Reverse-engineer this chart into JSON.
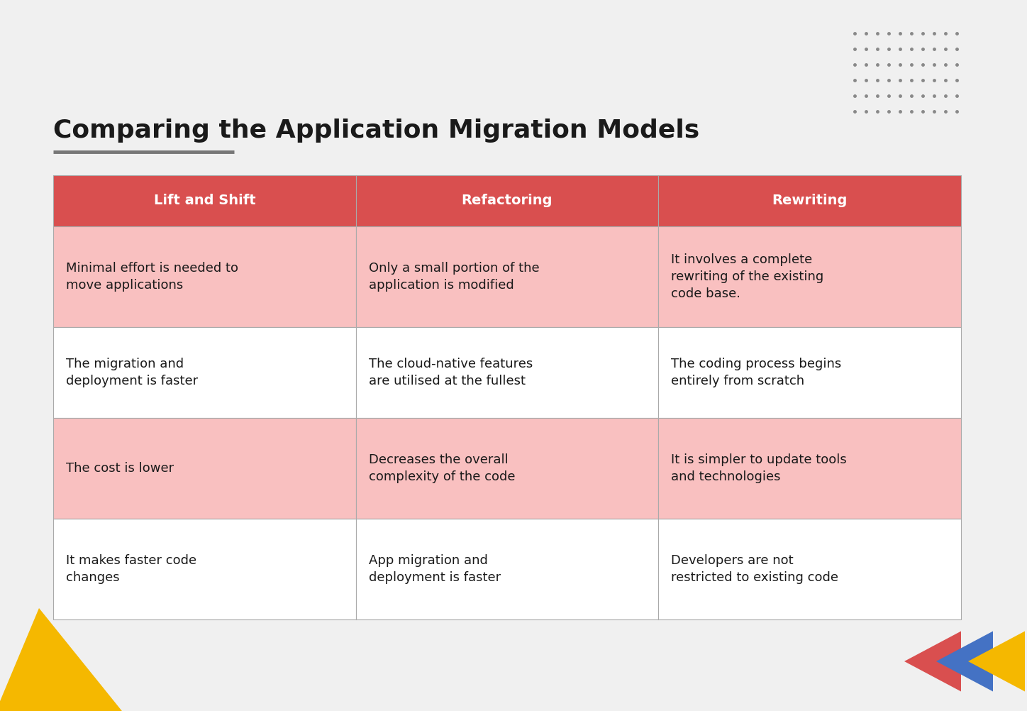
{
  "title": "Comparing the Application Migration Models",
  "background_color": "#f0f0f0",
  "title_color": "#1a1a1a",
  "title_fontsize": 26,
  "underline_color": "#777777",
  "header_bg_color": "#d94f4f",
  "header_text_color": "#ffffff",
  "row_even_bg": "#f9c0c0",
  "row_odd_bg": "#ffffff",
  "border_color": "#aaaaaa",
  "headers": [
    "Lift and Shift",
    "Refactoring",
    "Rewriting"
  ],
  "rows": [
    [
      "Minimal effort is needed to\nmove applications",
      "Only a small portion of the\napplication is modified",
      "It involves a complete\nrewriting of the existing\ncode base."
    ],
    [
      "The migration and\ndeployment is faster",
      "The cloud-native features\nare utilised at the fullest",
      "The coding process begins\nentirely from scratch"
    ],
    [
      "The cost is lower",
      "Decreases the overall\ncomplexity of the code",
      "It is simpler to update tools\nand technologies"
    ],
    [
      "It makes faster code\nchanges",
      "App migration and\ndeployment is faster",
      "Developers are not\nrestricted to existing code"
    ]
  ],
  "dot_color": "#888888",
  "triangle_bottom_left_color": "#f5b800",
  "arrow_colors": [
    "#d94f4f",
    "#4472c4",
    "#f5b800"
  ],
  "cell_fontsize": 13,
  "header_fontsize": 14
}
